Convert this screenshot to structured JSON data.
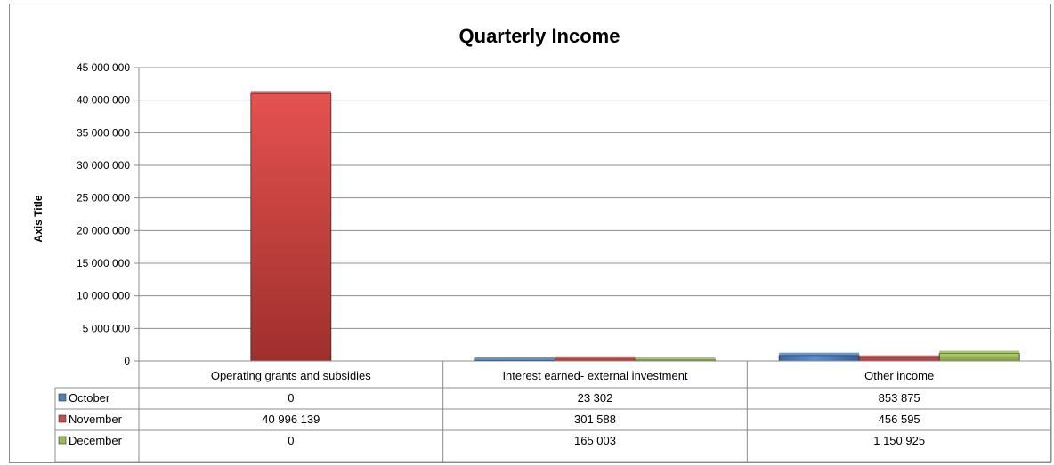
{
  "chart_data": {
    "type": "bar",
    "title": "Quarterly Income",
    "ylabel": "Axis Title",
    "xlabel": "",
    "categories": [
      "Operating grants and subsidies",
      "Interest earned- external investment",
      "Other income"
    ],
    "series": [
      {
        "name": "October",
        "color": "#4f81bd",
        "values": [
          0,
          23302,
          853875
        ],
        "labels": [
          "0",
          "23 302",
          "853 875"
        ]
      },
      {
        "name": "November",
        "color": "#c0504d",
        "values": [
          40996139,
          301588,
          456595
        ],
        "labels": [
          "40 996 139",
          "301 588",
          "456 595"
        ]
      },
      {
        "name": "December",
        "color": "#9bbb59",
        "values": [
          0,
          165003,
          1150925
        ],
        "labels": [
          "0",
          "165 003",
          "1 150 925"
        ]
      }
    ],
    "ylim": [
      0,
      45000000
    ],
    "yticks": [
      0,
      5000000,
      10000000,
      15000000,
      20000000,
      25000000,
      30000000,
      35000000,
      40000000,
      45000000
    ],
    "ytick_labels": [
      "0",
      "5 000 000",
      "10 000 000",
      "15 000 000",
      "20 000 000",
      "25 000 000",
      "30 000 000",
      "35 000 000",
      "40 000 000",
      "45 000 000"
    ],
    "grid": true,
    "legend": "data-table"
  }
}
